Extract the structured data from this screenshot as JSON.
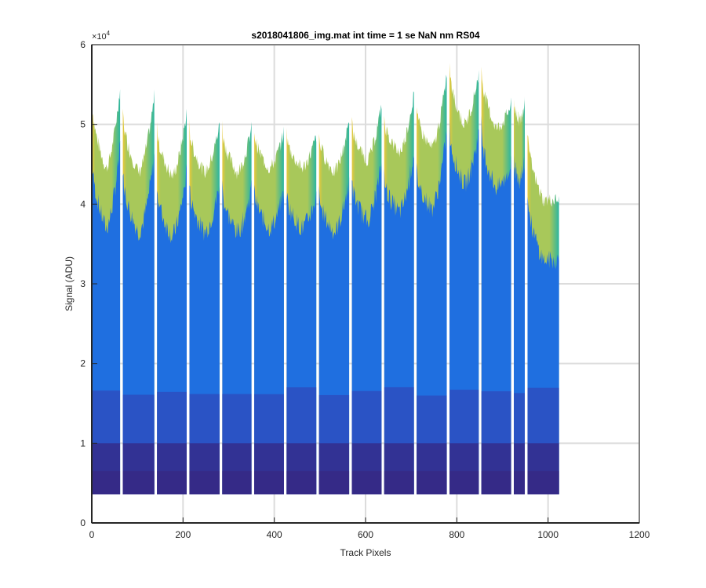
{
  "chart_data": {
    "type": "area",
    "title": "s2018041806_img.mat int time = 1 se  NaN nm RS04",
    "xlabel": "Track Pixels",
    "ylabel": "Signal (ADU)",
    "xlim": [
      0,
      1200
    ],
    "ylim": [
      0,
      60000
    ],
    "x_ticks": [
      "0",
      "200",
      "400",
      "600",
      "800",
      "1000",
      "1200"
    ],
    "y_ticks": [
      "0",
      "1",
      "2",
      "3",
      "4",
      "5",
      "6"
    ],
    "y_exponent_label": "×10",
    "y_exponent_power": "4",
    "grid": true,
    "baseline": 3600,
    "x_extent": [
      0,
      1024
    ],
    "segments": [
      {
        "x_start": 0,
        "x_end": 62,
        "top_left": 54000,
        "top_min": 44500,
        "top_right": 54500
      },
      {
        "x_start": 68,
        "x_end": 137,
        "top_left": 52000,
        "top_min": 44000,
        "top_right": 53500
      },
      {
        "x_start": 143,
        "x_end": 208,
        "top_left": 50000,
        "top_min": 43500,
        "top_right": 51500
      },
      {
        "x_start": 214,
        "x_end": 280,
        "top_left": 50000,
        "top_min": 44000,
        "top_right": 50000
      },
      {
        "x_start": 286,
        "x_end": 350,
        "top_left": 50000,
        "top_min": 44000,
        "top_right": 49500
      },
      {
        "x_start": 356,
        "x_end": 421,
        "top_left": 49500,
        "top_min": 44500,
        "top_right": 49000
      },
      {
        "x_start": 427,
        "x_end": 492,
        "top_left": 49000,
        "top_min": 44500,
        "top_right": 48500
      },
      {
        "x_start": 498,
        "x_end": 564,
        "top_left": 49000,
        "top_min": 44000,
        "top_right": 50500
      },
      {
        "x_start": 570,
        "x_end": 635,
        "top_left": 50500,
        "top_min": 45500,
        "top_right": 52500
      },
      {
        "x_start": 641,
        "x_end": 706,
        "top_left": 51000,
        "top_min": 46500,
        "top_right": 54000
      },
      {
        "x_start": 712,
        "x_end": 778,
        "top_left": 52000,
        "top_min": 47000,
        "top_right": 56500
      },
      {
        "x_start": 784,
        "x_end": 848,
        "top_left": 57500,
        "top_min": 50000,
        "top_right": 56500
      },
      {
        "x_start": 854,
        "x_end": 919,
        "top_left": 57500,
        "top_min": 49500,
        "top_right": 52500
      },
      {
        "x_start": 925,
        "x_end": 949,
        "top_left": 53000,
        "top_min": 50500,
        "top_right": 53000
      },
      {
        "x_start": 955,
        "x_end": 1024,
        "top_left": 49500,
        "top_min": 40500,
        "top_right": 40500
      }
    ],
    "colors": {
      "top_band": "#a8c85a",
      "top_band_highlight": "#e9c83a",
      "upper_band_right": "#2bb5a0",
      "middle_band": "#1f6fe0",
      "lower_band": "#2d4fc0",
      "bottom_band": "#352a87",
      "axis": "#262626",
      "grid": "#dcdcdc"
    }
  }
}
